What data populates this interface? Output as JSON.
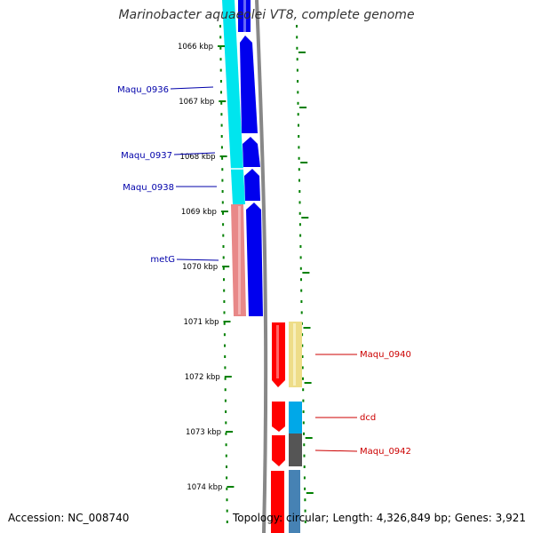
{
  "title": "Marinobacter aquaeolei VT8, complete genome",
  "footer": {
    "accession": "Accession: NC_008740",
    "topology": "Topology: circular;",
    "length": "Length: 4,326,849 bp;",
    "genes": "Genes: 3,921"
  },
  "colors": {
    "tick": "#008000",
    "label_blue": "#0000aa",
    "label_red": "#cc0000",
    "backbone": "#888888",
    "cyan": "#00e5ee",
    "blue": "#0000ee",
    "salmon": "#e88888",
    "red": "#ff0000",
    "khaki": "#eedd88",
    "sky": "#00a8e8",
    "gray": "#555555",
    "steel": "#4682b4"
  },
  "ruler": {
    "unit": "kbp",
    "ticks": [
      {
        "kbp": 1066,
        "label": "1066 kbp"
      },
      {
        "kbp": 1067,
        "label": "1067 kbp"
      },
      {
        "kbp": 1068,
        "label": "1068 kbp"
      },
      {
        "kbp": 1069,
        "label": "1069 kbp"
      },
      {
        "kbp": 1070,
        "label": "1070 kbp"
      },
      {
        "kbp": 1071,
        "label": "1071 kbp"
      },
      {
        "kbp": 1072,
        "label": "1072 kbp"
      },
      {
        "kbp": 1073,
        "label": "1073 kbp"
      },
      {
        "kbp": 1074,
        "label": "1074 kbp"
      }
    ]
  },
  "gene_labels": [
    {
      "name": "Maqu_0936",
      "side": "left",
      "color": "blue"
    },
    {
      "name": "Maqu_0937",
      "side": "left",
      "color": "blue"
    },
    {
      "name": "Maqu_0938",
      "side": "left",
      "color": "blue"
    },
    {
      "name": "metG",
      "side": "left",
      "color": "blue"
    },
    {
      "name": "Maqu_0940",
      "side": "right",
      "color": "red"
    },
    {
      "name": "dcd",
      "side": "right",
      "color": "red"
    },
    {
      "name": "Maqu_0942",
      "side": "right",
      "color": "red"
    }
  ]
}
